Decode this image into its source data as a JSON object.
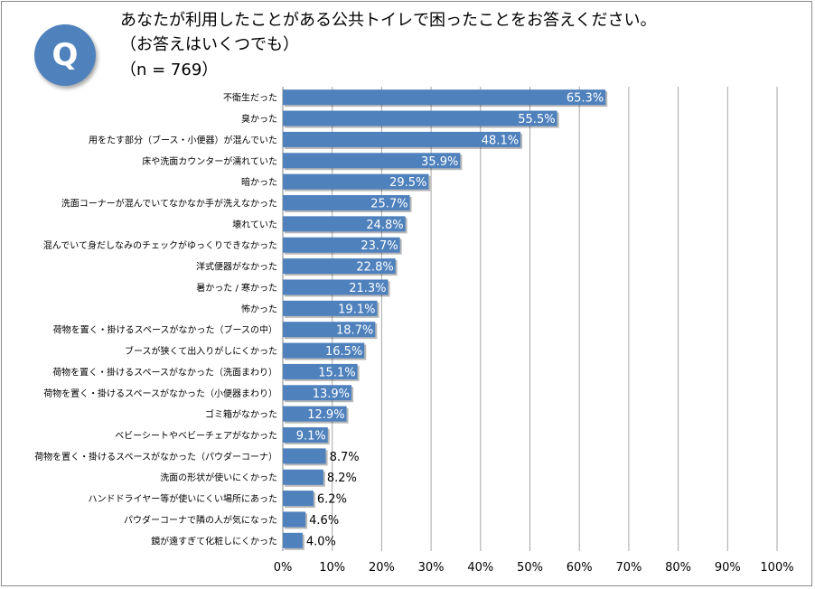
{
  "question": {
    "badge": "Q",
    "line1": "あなたが利用したことがある公共トイレで困ったことをお答えください。",
    "line2": "（お答えはいくつでも）",
    "line3": "（n = 769）"
  },
  "chart_data": {
    "type": "bar",
    "orientation": "horizontal",
    "categories": [
      "不衛生だった",
      "臭かった",
      "用をたす部分（ブース・小便器）が混んでいた",
      "床や洗面カウンターが濡れていた",
      "暗かった",
      "洗面コーナーが混んでいてなかなか手が洗えなかった",
      "壊れていた",
      "混んでいて身だしなみのチェックがゆっくりできなかった",
      "洋式便器がなかった",
      "暑かった / 寒かった",
      "怖かった",
      "荷物を置く・掛けるスペースがなかった（ブースの中）",
      "ブースが狭くて出入りがしにくかった",
      "荷物を置く・掛けるスペースがなかった（洗面まわり）",
      "荷物を置く・掛けるスペースがなかった（小便器まわり）",
      "ゴミ箱がなかった",
      "ベビーシートやベビーチェアがなかった",
      "荷物を置く・掛けるスペースがなかった（パウダーコーナ）",
      "洗面の形状が使いにくかった",
      "ハンドドライヤー等が使いにくい場所にあった",
      "パウダーコーナで隣の人が気になった",
      "鏡が遠すぎて化粧しにくかった"
    ],
    "values": [
      65.3,
      55.5,
      48.1,
      35.9,
      29.5,
      25.7,
      24.8,
      23.7,
      22.8,
      21.3,
      19.1,
      18.7,
      16.5,
      15.1,
      13.9,
      12.9,
      9.1,
      8.7,
      8.2,
      6.2,
      4.6,
      4.0
    ],
    "value_labels": [
      "65.3%",
      "55.5%",
      "48.1%",
      "35.9%",
      "29.5%",
      "25.7%",
      "24.8%",
      "23.7%",
      "22.8%",
      "21.3%",
      "19.1%",
      "18.7%",
      "16.5%",
      "15.1%",
      "13.9%",
      "12.9%",
      "9.1%",
      "8.7%",
      "8.2%",
      "6.2%",
      "4.6%",
      "4.0%"
    ],
    "xlim": [
      0,
      100
    ],
    "x_ticks": [
      0,
      10,
      20,
      30,
      40,
      50,
      60,
      70,
      80,
      90,
      100
    ],
    "x_tick_labels": [
      "0%",
      "10%",
      "20%",
      "30%",
      "40%",
      "50%",
      "60%",
      "70%",
      "80%",
      "90%",
      "100%"
    ],
    "grid": true,
    "bar_color": "#4f81bd",
    "grid_color": "#a6a6a6"
  }
}
